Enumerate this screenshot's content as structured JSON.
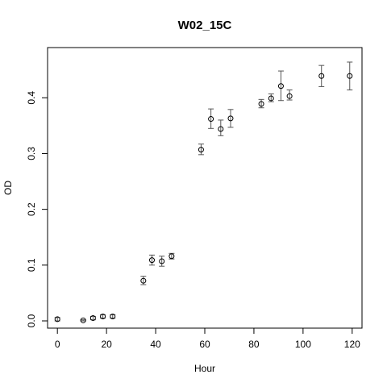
{
  "chart_data": {
    "type": "scatter",
    "title": "W02_15C",
    "xlabel": "Hour",
    "ylabel": "OD",
    "xlim": [
      -4,
      124
    ],
    "ylim": [
      -0.013,
      0.49
    ],
    "xticks": [
      0,
      20,
      40,
      60,
      80,
      100,
      120
    ],
    "yticks": [
      0.0,
      0.1,
      0.2,
      0.3,
      0.4
    ],
    "xtick_labels": [
      "0",
      "20",
      "40",
      "60",
      "80",
      "100",
      "120"
    ],
    "ytick_labels": [
      "0.0",
      "0.1",
      "0.2",
      "0.3",
      "0.4"
    ],
    "grid": false,
    "points": [
      {
        "x": 0,
        "y": 0.003,
        "lo": 0.0,
        "hi": 0.006
      },
      {
        "x": 10.5,
        "y": 0.001,
        "lo": 0.0,
        "hi": 0.002
      },
      {
        "x": 14.5,
        "y": 0.005,
        "lo": 0.002,
        "hi": 0.008
      },
      {
        "x": 18.5,
        "y": 0.008,
        "lo": 0.005,
        "hi": 0.011
      },
      {
        "x": 22.5,
        "y": 0.008,
        "lo": 0.005,
        "hi": 0.011
      },
      {
        "x": 35,
        "y": 0.072,
        "lo": 0.065,
        "hi": 0.08
      },
      {
        "x": 38.5,
        "y": 0.109,
        "lo": 0.1,
        "hi": 0.118
      },
      {
        "x": 42.5,
        "y": 0.107,
        "lo": 0.098,
        "hi": 0.116
      },
      {
        "x": 46.5,
        "y": 0.116,
        "lo": 0.111,
        "hi": 0.121
      },
      {
        "x": 58.5,
        "y": 0.307,
        "lo": 0.298,
        "hi": 0.317
      },
      {
        "x": 62.5,
        "y": 0.362,
        "lo": 0.345,
        "hi": 0.38
      },
      {
        "x": 66.5,
        "y": 0.344,
        "lo": 0.332,
        "hi": 0.36
      },
      {
        "x": 70.5,
        "y": 0.363,
        "lo": 0.347,
        "hi": 0.379
      },
      {
        "x": 83,
        "y": 0.389,
        "lo": 0.382,
        "hi": 0.397
      },
      {
        "x": 87,
        "y": 0.399,
        "lo": 0.393,
        "hi": 0.407
      },
      {
        "x": 91,
        "y": 0.421,
        "lo": 0.395,
        "hi": 0.448
      },
      {
        "x": 94.5,
        "y": 0.403,
        "lo": 0.396,
        "hi": 0.414
      },
      {
        "x": 107.5,
        "y": 0.439,
        "lo": 0.42,
        "hi": 0.458
      },
      {
        "x": 119,
        "y": 0.439,
        "lo": 0.414,
        "hi": 0.464
      }
    ]
  }
}
